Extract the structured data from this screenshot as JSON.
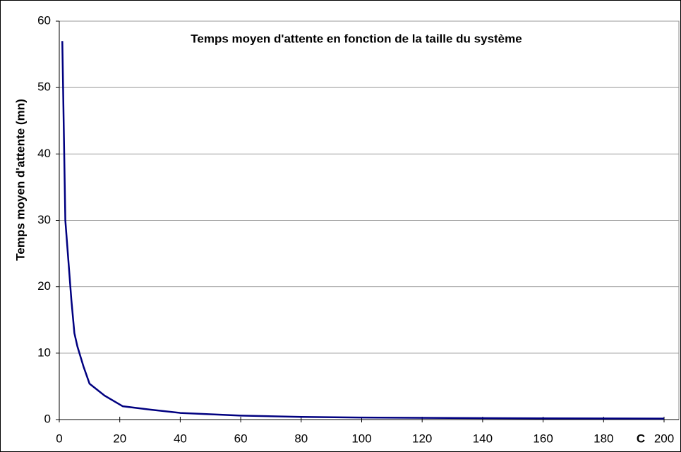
{
  "chart_data": {
    "type": "line",
    "title": "Temps moyen d'attente en fonction de la taille du système",
    "y_label": "Temps moyen d'attente (mn)",
    "x_label": "C",
    "series": [
      {
        "name": "Temps moyen d'attente",
        "color": "#000080",
        "x": [
          1,
          2,
          3,
          4,
          5,
          6,
          8,
          10,
          15,
          21,
          30,
          40,
          50,
          60,
          80,
          100,
          150,
          200
        ],
        "values": [
          57,
          30,
          24,
          18,
          13,
          11,
          8,
          5.4,
          3.6,
          2,
          1.5,
          1,
          0.8,
          0.6,
          0.4,
          0.3,
          0.2,
          0.15
        ]
      }
    ],
    "xlim": [
      0,
      200
    ],
    "xticks": [
      0,
      20,
      40,
      60,
      80,
      100,
      120,
      140,
      160,
      180,
      200
    ],
    "ylim": [
      0,
      60
    ],
    "yticks": [
      0,
      10,
      20,
      30,
      40,
      50,
      60
    ],
    "grid": true
  }
}
